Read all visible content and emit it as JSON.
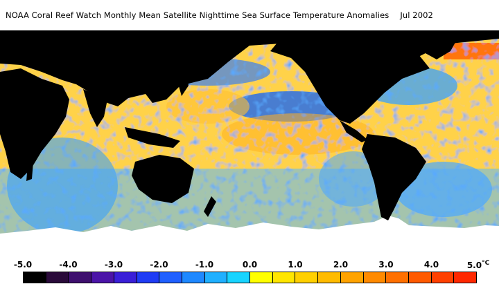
{
  "title": "NOAA Coral Reef Watch Monthly Mean Satellite Nighttime Sea Surface Temperature Anomalies",
  "date": "Jul 2002",
  "legend": {
    "ticks": [
      "-5.0",
      "-4.0",
      "-3.0",
      "-2.0",
      "-1.0",
      "0.0",
      "1.0",
      "2.0",
      "3.0",
      "4.0",
      "5.0"
    ],
    "unit": "°C",
    "colors": [
      "#000000",
      "#2a0a3a",
      "#3e0f6e",
      "#4b14a8",
      "#3a1fd8",
      "#1f3cf5",
      "#2060ff",
      "#1e88ff",
      "#20b0ff",
      "#18d4ff",
      "#ffff00",
      "#ffe600",
      "#ffd000",
      "#ffbb00",
      "#ffa300",
      "#ff8a00",
      "#ff7000",
      "#ff5a00",
      "#ff4000",
      "#ff2800"
    ]
  },
  "colors": {
    "land": "#000000",
    "ice": "#ffffff",
    "ocean_neutral": "#ffd24a",
    "ocean_cool": "#38a0ff",
    "ocean_warm": "#ff9a1a"
  }
}
